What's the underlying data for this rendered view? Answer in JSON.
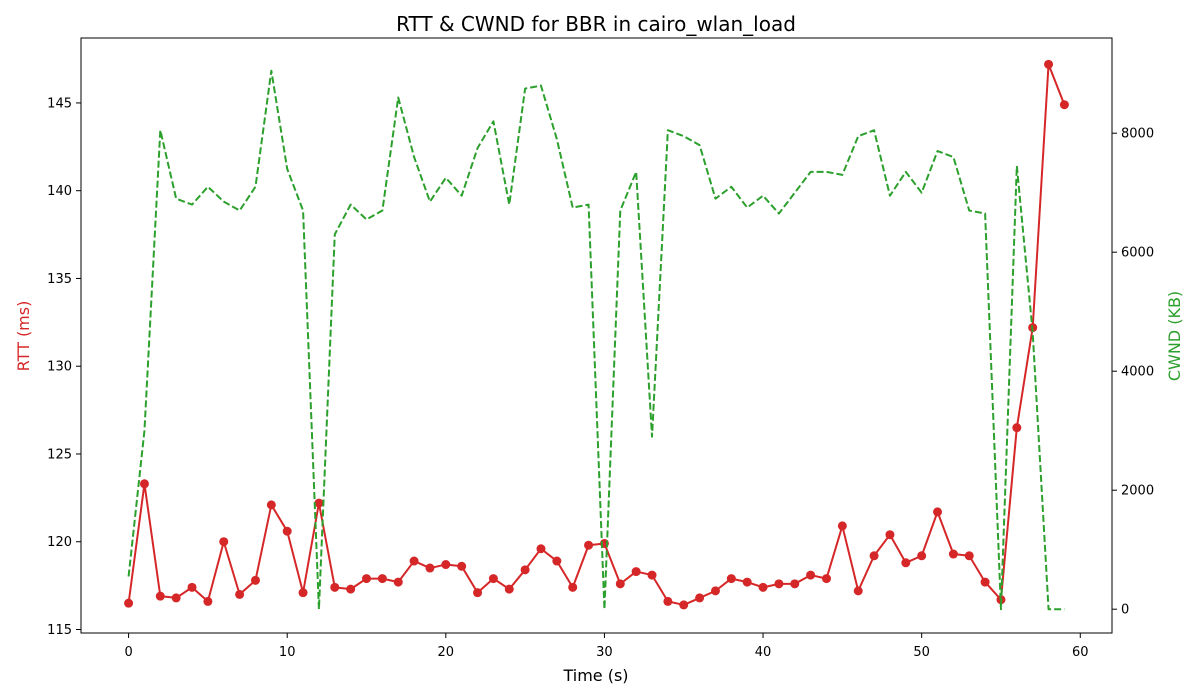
{
  "chart_data": {
    "type": "line",
    "title": "RTT & CWND for BBR in cairo_wlan_load",
    "xlabel": "Time (s)",
    "ylabel_left": "RTT (ms)",
    "ylabel_right": "CWND (KB)",
    "xlim": [
      -3,
      62
    ],
    "ylim_left": [
      114.8,
      148.7
    ],
    "ylim_right": [
      -400,
      9600
    ],
    "xticks": [
      0,
      10,
      20,
      30,
      40,
      50,
      60
    ],
    "yticks_left": [
      115,
      120,
      125,
      130,
      135,
      140,
      145
    ],
    "yticks_right": [
      0,
      2000,
      4000,
      6000,
      8000
    ],
    "grid": false,
    "series": [
      {
        "name": "",
        "axis": "left",
        "color": "#d62728",
        "style": "solid-marker",
        "x": [
          0,
          1,
          2,
          3,
          4,
          5,
          6,
          7,
          8,
          9,
          10,
          11,
          12,
          13,
          14,
          15,
          16,
          17,
          18,
          19,
          20,
          21,
          22,
          23,
          24,
          25,
          26,
          27,
          28,
          29,
          30,
          31,
          32,
          33,
          34,
          35,
          36,
          37,
          38,
          39,
          40,
          41,
          42,
          43,
          44,
          45,
          46,
          47,
          48,
          49,
          50,
          51,
          52,
          53,
          54,
          55,
          56,
          57,
          58,
          59
        ],
        "values": [
          116.5,
          123.3,
          116.9,
          116.8,
          117.4,
          116.6,
          120.0,
          117.0,
          117.8,
          122.1,
          120.6,
          117.1,
          122.2,
          117.4,
          117.3,
          117.9,
          117.9,
          117.7,
          118.9,
          118.5,
          118.7,
          118.6,
          117.1,
          117.9,
          117.3,
          118.4,
          119.6,
          118.9,
          117.4,
          119.8,
          119.9,
          117.6,
          118.3,
          118.1,
          116.6,
          116.4,
          116.8,
          117.2,
          117.9,
          117.7,
          117.4,
          117.6,
          117.6,
          118.1,
          117.9,
          120.9,
          117.2,
          119.2,
          120.4,
          118.8,
          119.2,
          121.7,
          119.3,
          119.2,
          117.7,
          116.7,
          126.5,
          132.2,
          147.2,
          144.9
        ]
      },
      {
        "name": "",
        "axis": "right",
        "color": "#2ca02c",
        "style": "dashed",
        "x": [
          0,
          1,
          2,
          3,
          4,
          5,
          6,
          7,
          8,
          9,
          10,
          11,
          12,
          13,
          14,
          15,
          16,
          17,
          18,
          19,
          20,
          21,
          22,
          23,
          24,
          25,
          26,
          27,
          28,
          29,
          30,
          31,
          32,
          33,
          34,
          35,
          36,
          37,
          38,
          39,
          40,
          41,
          42,
          43,
          44,
          45,
          46,
          47,
          48,
          49,
          50,
          51,
          52,
          53,
          54,
          55,
          56,
          57,
          58,
          59
        ],
        "values": [
          550,
          3000,
          8050,
          6900,
          6800,
          7100,
          6850,
          6700,
          7100,
          9050,
          7400,
          6700,
          0,
          6300,
          6800,
          6550,
          6700,
          8600,
          7600,
          6850,
          7250,
          6950,
          7750,
          8200,
          6800,
          8750,
          8800,
          7900,
          6750,
          6800,
          0,
          6700,
          7350,
          2900,
          8050,
          7950,
          7800,
          6900,
          7100,
          6750,
          6950,
          6650,
          7000,
          7350,
          7350,
          7300,
          7950,
          8050,
          6950,
          7350,
          7000,
          7700,
          7600,
          6700,
          6650,
          0,
          7450,
          4650,
          0,
          0
        ]
      }
    ]
  }
}
